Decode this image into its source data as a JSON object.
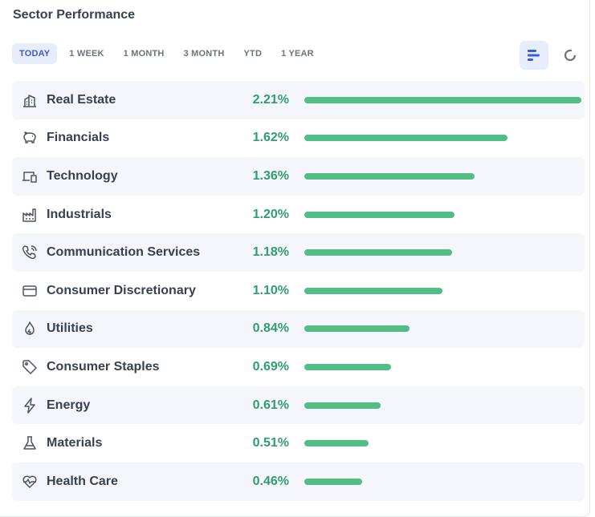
{
  "title": "Sector Performance",
  "tabs": [
    {
      "label": "TODAY",
      "active": true
    },
    {
      "label": "1 WEEK",
      "active": false
    },
    {
      "label": "1 MONTH",
      "active": false
    },
    {
      "label": "3 MONTH",
      "active": false
    },
    {
      "label": "YTD",
      "active": false
    },
    {
      "label": "1 YEAR",
      "active": false
    }
  ],
  "view_toggle": {
    "bar_icon": "bar-chart-icon",
    "donut_icon": "donut-chart-icon"
  },
  "colors": {
    "accent": "#3b5bdb",
    "positive": "#2f9e6e",
    "bar": "#52bd85"
  },
  "sectors": [
    {
      "name": "Real Estate",
      "value": 2.21,
      "label": "2.21%",
      "icon": "building-icon"
    },
    {
      "name": "Financials",
      "value": 1.62,
      "label": "1.62%",
      "icon": "piggy-bank-icon"
    },
    {
      "name": "Technology",
      "value": 1.36,
      "label": "1.36%",
      "icon": "devices-icon"
    },
    {
      "name": "Industrials",
      "value": 1.2,
      "label": "1.20%",
      "icon": "factory-icon"
    },
    {
      "name": "Communication Services",
      "value": 1.18,
      "label": "1.18%",
      "icon": "phone-icon"
    },
    {
      "name": "Consumer Discretionary",
      "value": 1.1,
      "label": "1.10%",
      "icon": "credit-card-icon"
    },
    {
      "name": "Utilities",
      "value": 0.84,
      "label": "0.84%",
      "icon": "flame-icon"
    },
    {
      "name": "Consumer Staples",
      "value": 0.69,
      "label": "0.69%",
      "icon": "tag-icon"
    },
    {
      "name": "Energy",
      "value": 0.61,
      "label": "0.61%",
      "icon": "bolt-icon"
    },
    {
      "name": "Materials",
      "value": 0.51,
      "label": "0.51%",
      "icon": "flask-icon"
    },
    {
      "name": "Health Care",
      "value": 0.46,
      "label": "0.46%",
      "icon": "heart-pulse-icon"
    }
  ]
}
